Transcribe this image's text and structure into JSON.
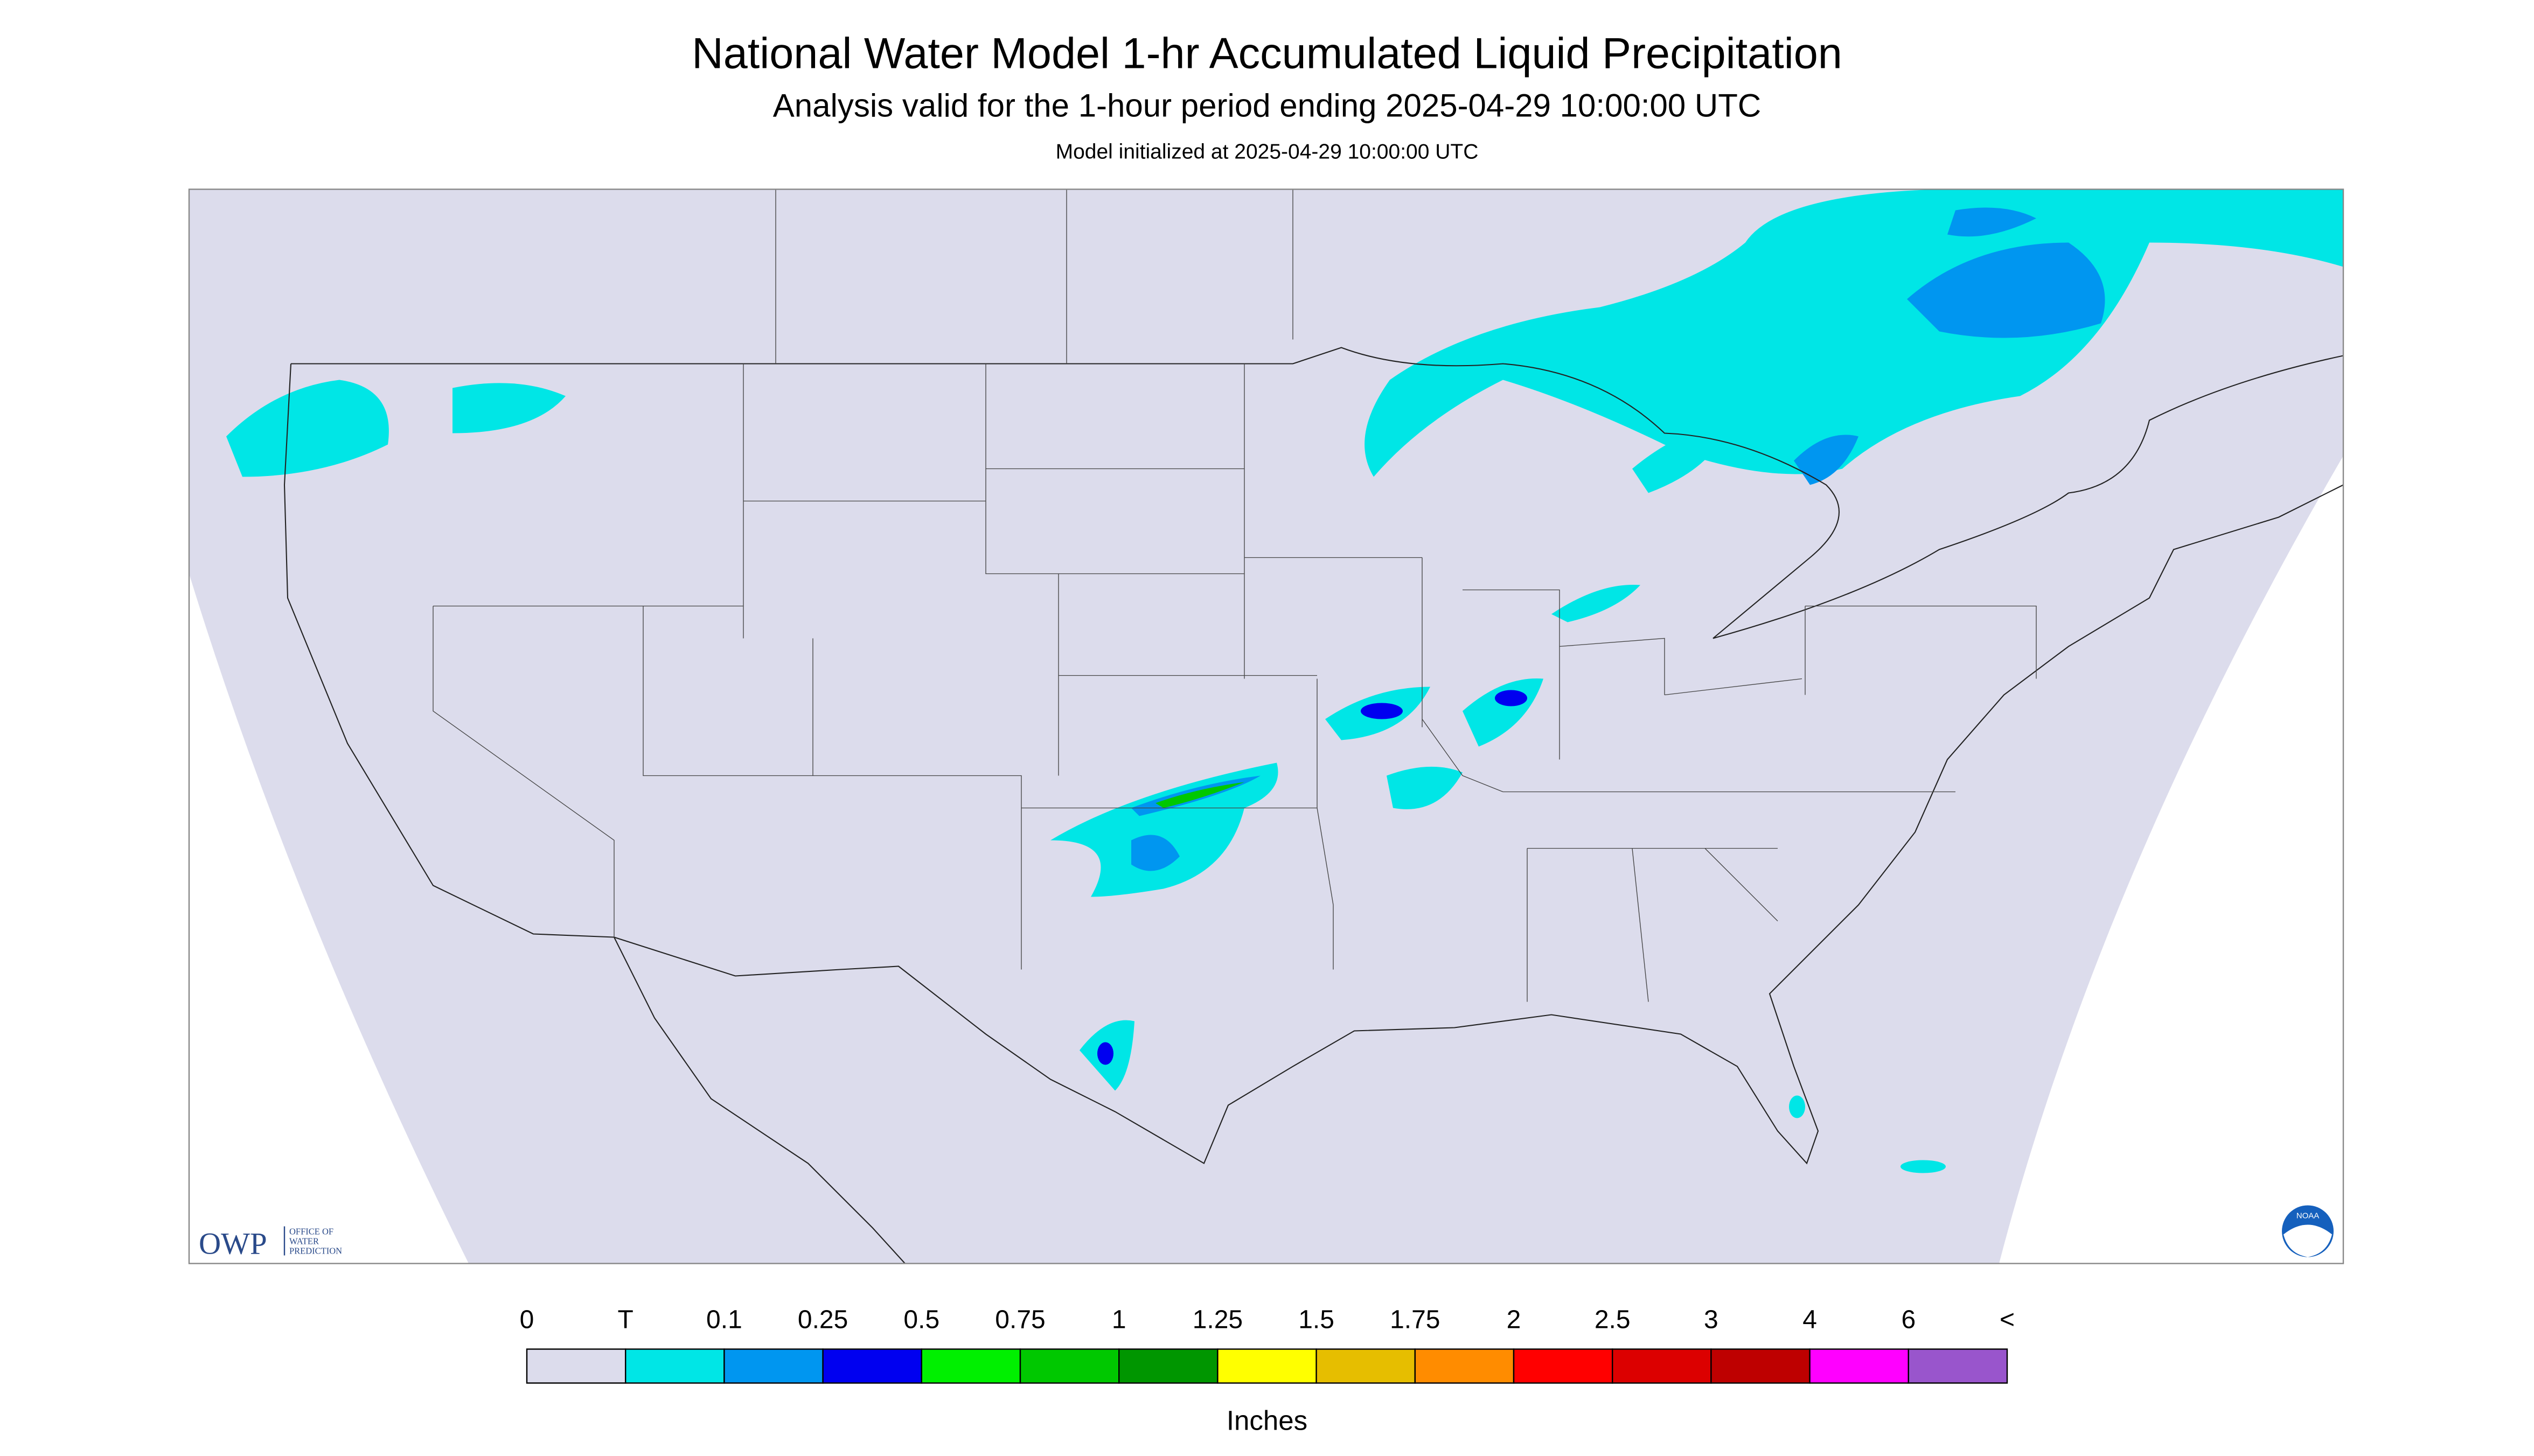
{
  "header": {
    "title": "National Water Model 1-hr Accumulated Liquid Precipitation",
    "subtitle": "Analysis valid for the 1-hour period ending 2025-04-29 10:00:00 UTC",
    "init": "Model initialized at 2025-04-29 10:00:00 UTC"
  },
  "logo": {
    "owp": "OWP",
    "office": [
      "OFFICE OF",
      "WATER",
      "PREDICTION"
    ],
    "noaa": "NOAA"
  },
  "legend": {
    "labels": [
      "0",
      "T",
      "0.1",
      "0.25",
      "0.5",
      "0.75",
      "1",
      "1.25",
      "1.5",
      "1.75",
      "2",
      "2.5",
      "3",
      "4",
      "6",
      "<"
    ],
    "colors": [
      "#dcdcec",
      "#00e6e6",
      "#0096f0",
      "#0000f0",
      "#00f000",
      "#00c800",
      "#009600",
      "#ffff00",
      "#e6be00",
      "#ff8c00",
      "#ff0000",
      "#dc0000",
      "#be0000",
      "#ff00ff",
      "#9955cc"
    ],
    "unit": "Inches"
  }
}
